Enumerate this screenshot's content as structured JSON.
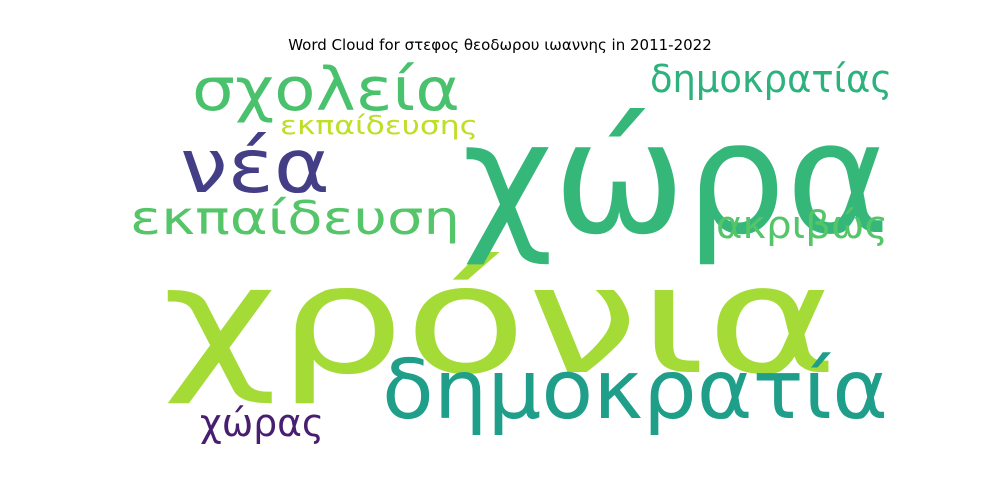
{
  "title": "Word Cloud for στεφος θεοδωρου ιωαννης in 2011-2022",
  "chart_data": {
    "type": "wordcloud",
    "title": "Word Cloud for στεφος θεοδωρου ιωαννης in 2011-2022",
    "words": [
      {
        "text": "χρόνια",
        "rank": 1,
        "color": "#a5db36"
      },
      {
        "text": "χώρα",
        "rank": 2,
        "color": "#35b779"
      },
      {
        "text": "δημοκρατία",
        "rank": 3,
        "color": "#1f9e89"
      },
      {
        "text": "νέα",
        "rank": 4,
        "color": "#433e85"
      },
      {
        "text": "σχολεία",
        "rank": 5,
        "color": "#4ac16d"
      },
      {
        "text": "εκπαίδευση",
        "rank": 6,
        "color": "#54c568"
      },
      {
        "text": "δημοκρατίας",
        "rank": 7,
        "color": "#2db27d"
      },
      {
        "text": "ακριβώς",
        "rank": 8,
        "color": "#54c568"
      },
      {
        "text": "χώρας",
        "rank": 9,
        "color": "#481f70"
      },
      {
        "text": "εκπαίδευσης",
        "rank": 10,
        "color": "#bddf26"
      }
    ]
  }
}
